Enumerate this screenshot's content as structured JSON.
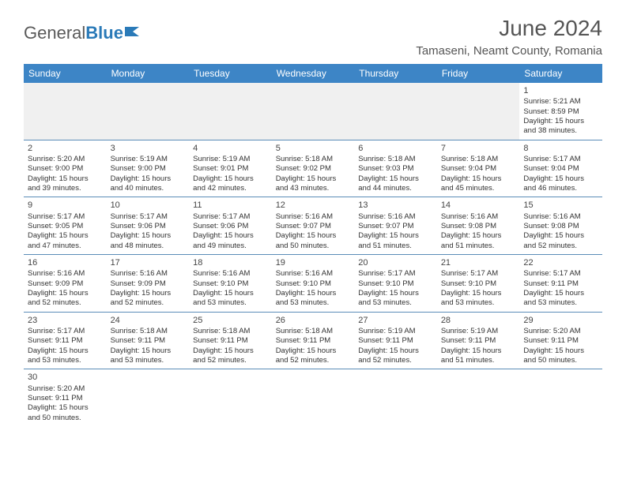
{
  "logo": {
    "part1": "General",
    "part2": "Blue"
  },
  "title": "June 2024",
  "location": "Tamaseni, Neamt County, Romania",
  "colors": {
    "header_bg": "#3d85c6",
    "header_text": "#ffffff",
    "border": "#5b8db8",
    "text": "#333333",
    "logo_gray": "#5a5a5a",
    "logo_blue": "#2a7ab8"
  },
  "weekdays": [
    "Sunday",
    "Monday",
    "Tuesday",
    "Wednesday",
    "Thursday",
    "Friday",
    "Saturday"
  ],
  "weeks": [
    [
      null,
      null,
      null,
      null,
      null,
      null,
      {
        "d": "1",
        "sr": "5:21 AM",
        "ss": "8:59 PM",
        "dl": "15 hours",
        "dm": "and 38 minutes."
      }
    ],
    [
      {
        "d": "2",
        "sr": "5:20 AM",
        "ss": "9:00 PM",
        "dl": "15 hours",
        "dm": "and 39 minutes."
      },
      {
        "d": "3",
        "sr": "5:19 AM",
        "ss": "9:00 PM",
        "dl": "15 hours",
        "dm": "and 40 minutes."
      },
      {
        "d": "4",
        "sr": "5:19 AM",
        "ss": "9:01 PM",
        "dl": "15 hours",
        "dm": "and 42 minutes."
      },
      {
        "d": "5",
        "sr": "5:18 AM",
        "ss": "9:02 PM",
        "dl": "15 hours",
        "dm": "and 43 minutes."
      },
      {
        "d": "6",
        "sr": "5:18 AM",
        "ss": "9:03 PM",
        "dl": "15 hours",
        "dm": "and 44 minutes."
      },
      {
        "d": "7",
        "sr": "5:18 AM",
        "ss": "9:04 PM",
        "dl": "15 hours",
        "dm": "and 45 minutes."
      },
      {
        "d": "8",
        "sr": "5:17 AM",
        "ss": "9:04 PM",
        "dl": "15 hours",
        "dm": "and 46 minutes."
      }
    ],
    [
      {
        "d": "9",
        "sr": "5:17 AM",
        "ss": "9:05 PM",
        "dl": "15 hours",
        "dm": "and 47 minutes."
      },
      {
        "d": "10",
        "sr": "5:17 AM",
        "ss": "9:06 PM",
        "dl": "15 hours",
        "dm": "and 48 minutes."
      },
      {
        "d": "11",
        "sr": "5:17 AM",
        "ss": "9:06 PM",
        "dl": "15 hours",
        "dm": "and 49 minutes."
      },
      {
        "d": "12",
        "sr": "5:16 AM",
        "ss": "9:07 PM",
        "dl": "15 hours",
        "dm": "and 50 minutes."
      },
      {
        "d": "13",
        "sr": "5:16 AM",
        "ss": "9:07 PM",
        "dl": "15 hours",
        "dm": "and 51 minutes."
      },
      {
        "d": "14",
        "sr": "5:16 AM",
        "ss": "9:08 PM",
        "dl": "15 hours",
        "dm": "and 51 minutes."
      },
      {
        "d": "15",
        "sr": "5:16 AM",
        "ss": "9:08 PM",
        "dl": "15 hours",
        "dm": "and 52 minutes."
      }
    ],
    [
      {
        "d": "16",
        "sr": "5:16 AM",
        "ss": "9:09 PM",
        "dl": "15 hours",
        "dm": "and 52 minutes."
      },
      {
        "d": "17",
        "sr": "5:16 AM",
        "ss": "9:09 PM",
        "dl": "15 hours",
        "dm": "and 52 minutes."
      },
      {
        "d": "18",
        "sr": "5:16 AM",
        "ss": "9:10 PM",
        "dl": "15 hours",
        "dm": "and 53 minutes."
      },
      {
        "d": "19",
        "sr": "5:16 AM",
        "ss": "9:10 PM",
        "dl": "15 hours",
        "dm": "and 53 minutes."
      },
      {
        "d": "20",
        "sr": "5:17 AM",
        "ss": "9:10 PM",
        "dl": "15 hours",
        "dm": "and 53 minutes."
      },
      {
        "d": "21",
        "sr": "5:17 AM",
        "ss": "9:10 PM",
        "dl": "15 hours",
        "dm": "and 53 minutes."
      },
      {
        "d": "22",
        "sr": "5:17 AM",
        "ss": "9:11 PM",
        "dl": "15 hours",
        "dm": "and 53 minutes."
      }
    ],
    [
      {
        "d": "23",
        "sr": "5:17 AM",
        "ss": "9:11 PM",
        "dl": "15 hours",
        "dm": "and 53 minutes."
      },
      {
        "d": "24",
        "sr": "5:18 AM",
        "ss": "9:11 PM",
        "dl": "15 hours",
        "dm": "and 53 minutes."
      },
      {
        "d": "25",
        "sr": "5:18 AM",
        "ss": "9:11 PM",
        "dl": "15 hours",
        "dm": "and 52 minutes."
      },
      {
        "d": "26",
        "sr": "5:18 AM",
        "ss": "9:11 PM",
        "dl": "15 hours",
        "dm": "and 52 minutes."
      },
      {
        "d": "27",
        "sr": "5:19 AM",
        "ss": "9:11 PM",
        "dl": "15 hours",
        "dm": "and 52 minutes."
      },
      {
        "d": "28",
        "sr": "5:19 AM",
        "ss": "9:11 PM",
        "dl": "15 hours",
        "dm": "and 51 minutes."
      },
      {
        "d": "29",
        "sr": "5:20 AM",
        "ss": "9:11 PM",
        "dl": "15 hours",
        "dm": "and 50 minutes."
      }
    ],
    [
      {
        "d": "30",
        "sr": "5:20 AM",
        "ss": "9:11 PM",
        "dl": "15 hours",
        "dm": "and 50 minutes."
      },
      null,
      null,
      null,
      null,
      null,
      null
    ]
  ],
  "labels": {
    "sunrise": "Sunrise:",
    "sunset": "Sunset:",
    "daylight": "Daylight:"
  }
}
